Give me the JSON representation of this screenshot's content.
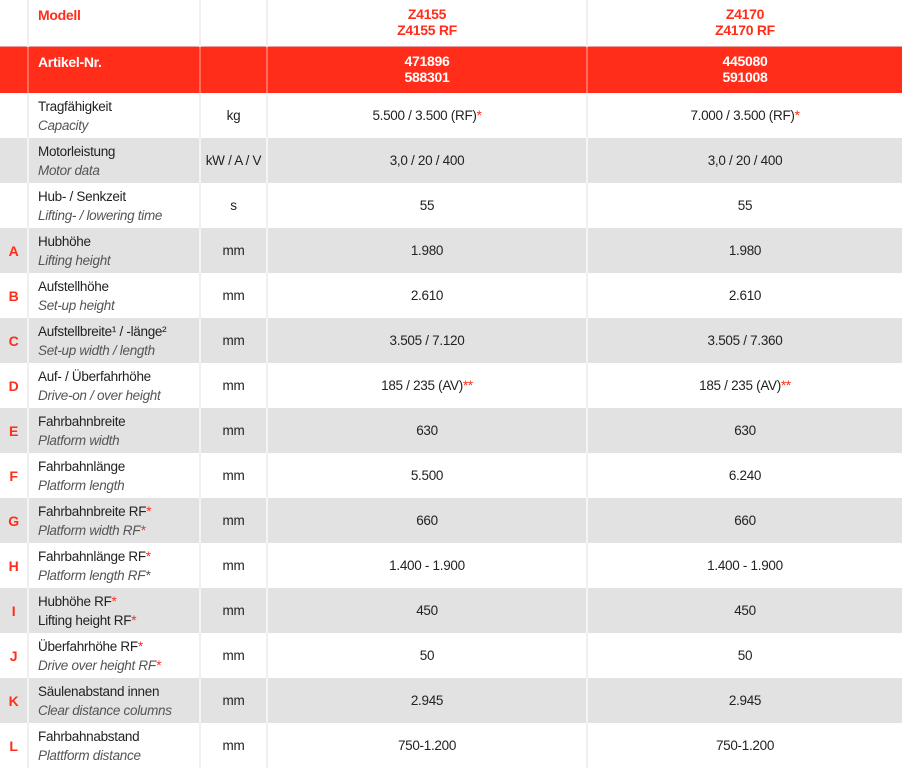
{
  "header": {
    "label": "Modell",
    "models": [
      [
        "Z4155",
        "Z4155 RF"
      ],
      [
        "Z4170",
        "Z4170 RF"
      ]
    ]
  },
  "article": {
    "label": "Artikel-Nr.",
    "numbers": [
      [
        "471896",
        "588301"
      ],
      [
        "445080",
        "591008"
      ]
    ]
  },
  "rows": [
    {
      "letter": "",
      "de": "Tragfähigkeit",
      "en": "Capacity",
      "unit": "kg",
      "v1": "5.500 / 3.500 (RF)",
      "v1s": "*",
      "v2": "7.000 / 3.500 (RF)",
      "v2s": "*"
    },
    {
      "letter": "",
      "de": "Motorleistung",
      "en": "Motor data",
      "unit": "kW / A / V",
      "v1": "3,0 / 20 / 400",
      "v2": "3,0 / 20 / 400"
    },
    {
      "letter": "",
      "de": "Hub- / Senkzeit",
      "en": "Lifting- / lowering time",
      "unit": "s",
      "v1": "55",
      "v2": "55"
    },
    {
      "letter": "A",
      "de": "Hubhöhe",
      "en": "Lifting height",
      "unit": "mm",
      "v1": "1.980",
      "v2": "1.980"
    },
    {
      "letter": "B",
      "de": "Aufstellhöhe",
      "en": "Set-up height",
      "unit": "mm",
      "v1": "2.610",
      "v2": "2.610"
    },
    {
      "letter": "C",
      "de": "Aufstellbreite¹ / -länge²",
      "en": "Set-up width / length",
      "unit": "mm",
      "v1": "3.505 / 7.120",
      "v2": "3.505 / 7.360"
    },
    {
      "letter": "D",
      "de": "Auf- / Überfahrhöhe",
      "en": "Drive-on / over height",
      "unit": "mm",
      "v1": "185 / 235 (AV)",
      "v1s": "**",
      "v2": "185 / 235 (AV)",
      "v2s": "**"
    },
    {
      "letter": "E",
      "de": "Fahrbahnbreite",
      "en": "Platform width",
      "unit": "mm",
      "v1": "630",
      "v2": "630"
    },
    {
      "letter": "F",
      "de": "Fahrbahnlänge",
      "en": "Platform length",
      "unit": "mm",
      "v1": "5.500",
      "v2": "6.240"
    },
    {
      "letter": "G",
      "de": "Fahrbahnbreite RF",
      "des": "*",
      "en": "Platform width RF",
      "ens": "*",
      "unit": "mm",
      "v1": "660",
      "v2": "660"
    },
    {
      "letter": "H",
      "de": "Fahrbahnlänge RF",
      "des": "*",
      "en": "Platform length RF*",
      "unit": "mm",
      "v1": "1.400 - 1.900",
      "v2": "1.400 - 1.900"
    },
    {
      "letter": "I",
      "de": "Hubhöhe RF",
      "des": "*",
      "en": "Lifting height RF",
      "ens": "*",
      "enPlain": true,
      "unit": "mm",
      "v1": "450",
      "v2": "450"
    },
    {
      "letter": "J",
      "de": "Überfahrhöhe RF",
      "des": "*",
      "en": "Drive over height RF",
      "ens": "*",
      "unit": "mm",
      "v1": "50",
      "v2": "50"
    },
    {
      "letter": "K",
      "de": "Säulenabstand innen",
      "en": "Clear distance columns",
      "unit": "mm",
      "v1": "2.945",
      "v2": "2.945"
    },
    {
      "letter": "L",
      "de": "Fahrbahnabstand",
      "en": "Plattform distance",
      "unit": "mm",
      "v1": "750-1.200",
      "v2": "750-1.200"
    }
  ],
  "colors": {
    "accent": "#ff2d1a",
    "stripe": "#e2e2e2"
  }
}
